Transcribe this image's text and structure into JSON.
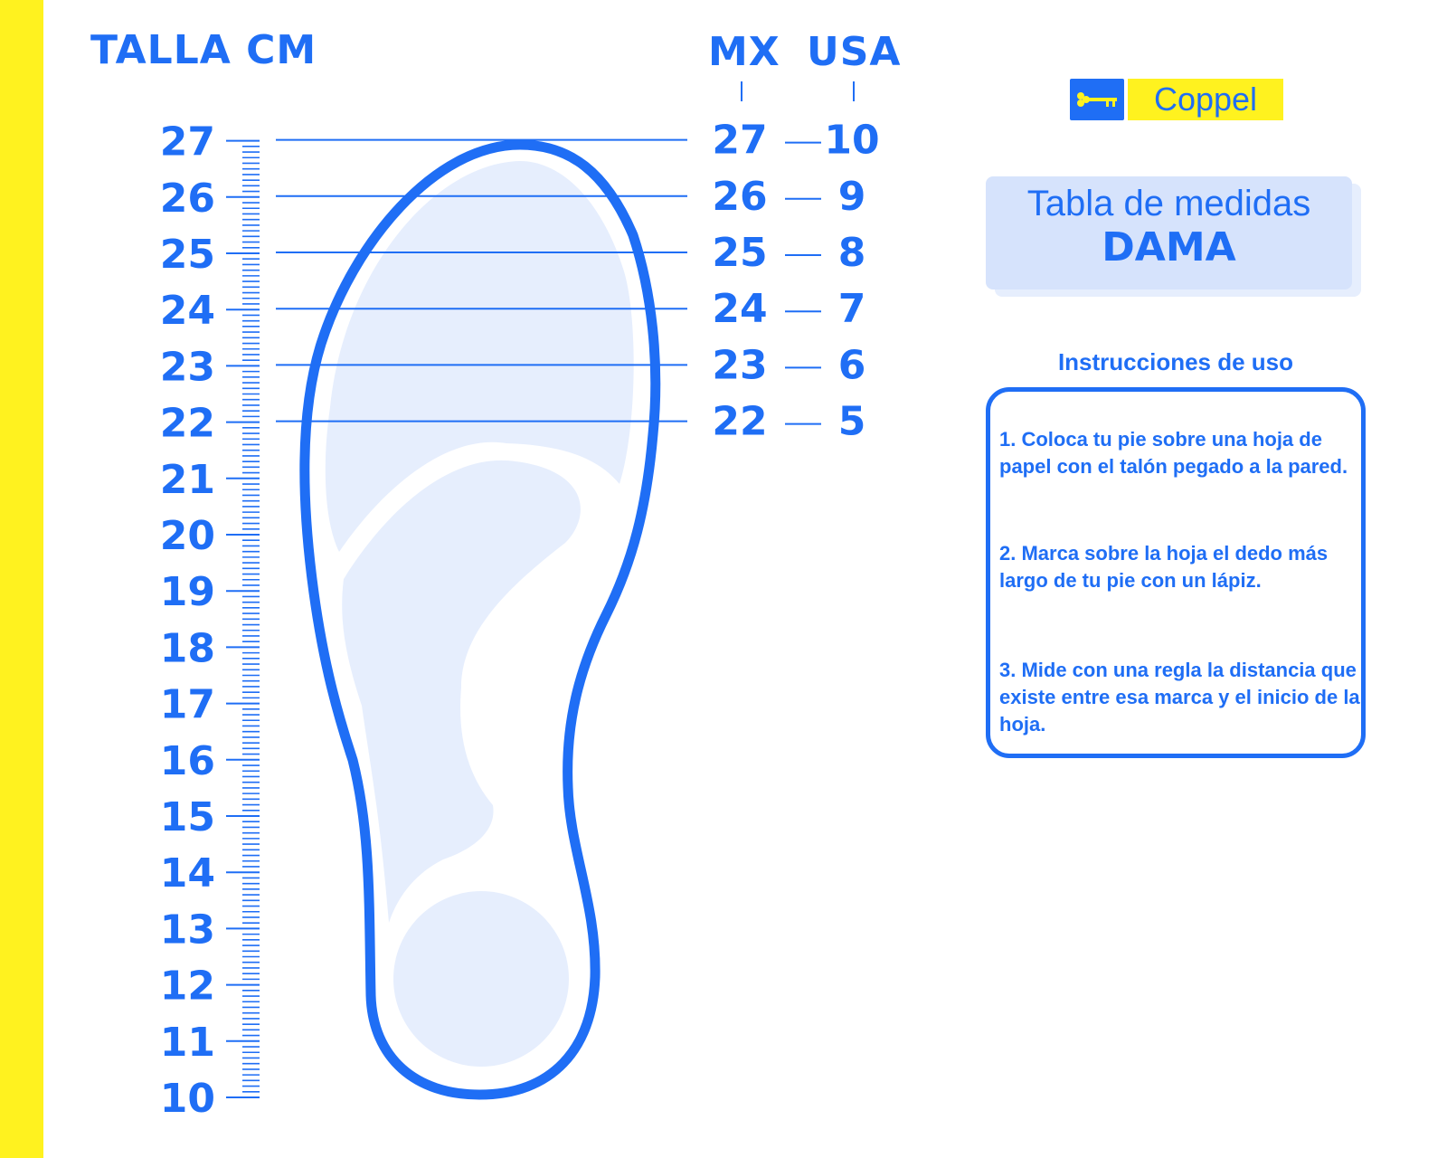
{
  "headers": {
    "talla_cm": "TALLA CM",
    "mx": "MX",
    "usa": "USA"
  },
  "ruler": {
    "min_cm": 10,
    "max_cm": 27,
    "labels": [
      "27",
      "26",
      "25",
      "24",
      "23",
      "22",
      "21",
      "20",
      "19",
      "18",
      "17",
      "16",
      "15",
      "14",
      "13",
      "12",
      "11",
      "10"
    ]
  },
  "sizes": [
    {
      "cm": 27,
      "mx": "27",
      "usa": "10"
    },
    {
      "cm": 26,
      "mx": "26",
      "usa": "9"
    },
    {
      "cm": 25,
      "mx": "25",
      "usa": "8"
    },
    {
      "cm": 24,
      "mx": "24",
      "usa": "7"
    },
    {
      "cm": 23,
      "mx": "23",
      "usa": "6"
    },
    {
      "cm": 22,
      "mx": "22",
      "usa": "5"
    }
  ],
  "logo": {
    "brand": "Coppel",
    "icon": "key-icon"
  },
  "title": {
    "line1": "Tabla de medidas",
    "line2": "DAMA"
  },
  "instructions": {
    "title": "Instrucciones de uso",
    "steps": [
      "1. Coloca tu pie sobre una hoja de papel con el talón pegado a la pared.",
      "2. Marca sobre la hoja el dedo más largo de tu pie con un lápiz.",
      "3. Mide con una regla la distancia que existe entre esa marca y el inicio de la hoja."
    ]
  },
  "colors": {
    "accent": "#1f6ef5",
    "yellow": "#fff21f",
    "light_fill": "#e6eefd"
  }
}
